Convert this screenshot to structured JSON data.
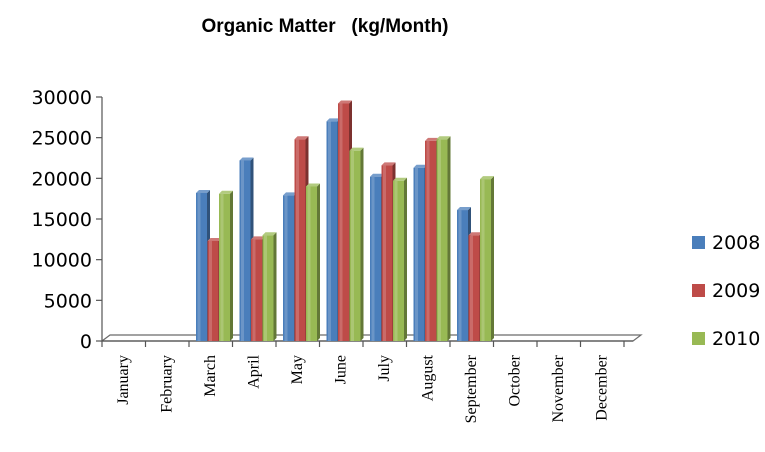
{
  "chart_data": {
    "type": "bar",
    "title": "Organic Matter   (kg/Month)",
    "xlabel": "",
    "ylabel": "",
    "ylim": [
      0,
      30000
    ],
    "yticks": [
      0,
      5000,
      10000,
      15000,
      20000,
      25000,
      30000
    ],
    "categories": [
      "January",
      "February",
      "March",
      "April",
      "May",
      "June",
      "July",
      "August",
      "September",
      "October",
      "November",
      "December"
    ],
    "series": [
      {
        "name": "2008",
        "color": "#4a7ebb",
        "values": [
          0,
          0,
          18200,
          22200,
          17900,
          27000,
          20200,
          21300,
          16100,
          0,
          0,
          0
        ]
      },
      {
        "name": "2009",
        "color": "#be4b48",
        "values": [
          0,
          0,
          12300,
          12500,
          24800,
          29200,
          21600,
          24600,
          13000,
          0,
          0,
          0
        ]
      },
      {
        "name": "2010",
        "color": "#98b954",
        "values": [
          0,
          0,
          18100,
          13000,
          19000,
          23400,
          19700,
          24800,
          19900,
          0,
          0,
          0
        ]
      }
    ],
    "legend_position": "right",
    "grid": false,
    "style": "3d-clustered"
  }
}
